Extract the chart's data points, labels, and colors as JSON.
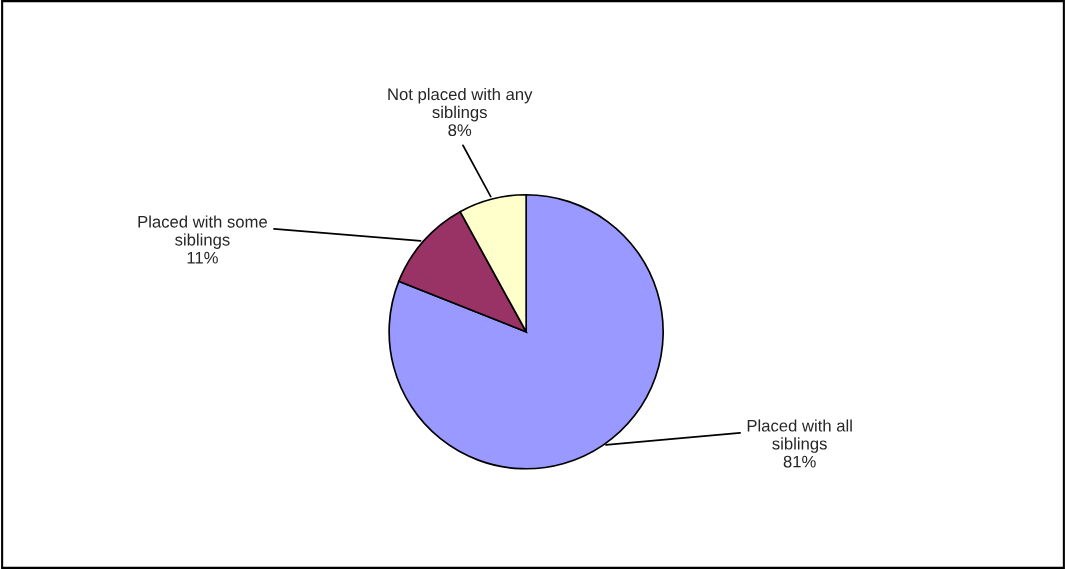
{
  "chart_data": {
    "type": "pie",
    "categories": [
      "Placed with all siblings",
      "Placed with some siblings",
      "Not placed with any siblings"
    ],
    "values": [
      81,
      11,
      8
    ],
    "value_labels": [
      "81%",
      "11%",
      "8%"
    ],
    "colors": [
      "#9999ff",
      "#993366",
      "#ffffcc"
    ],
    "legend": false
  }
}
